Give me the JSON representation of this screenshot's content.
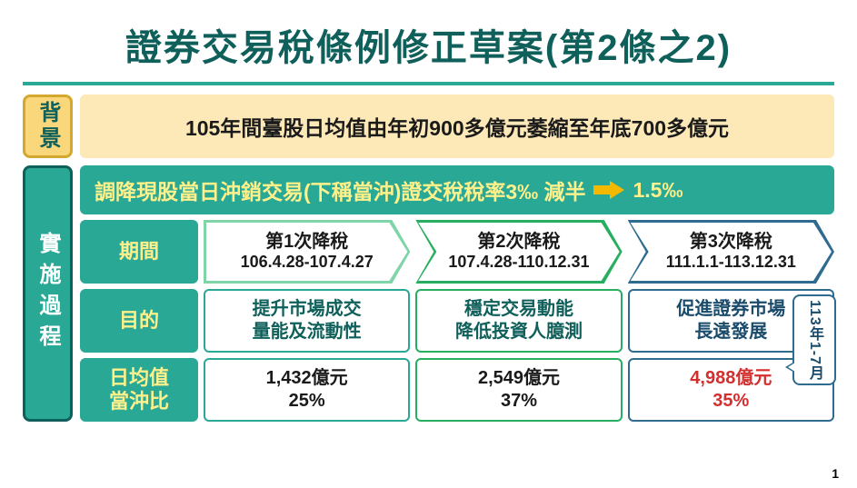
{
  "title": "證券交易稅條例修正草案(第2條之2)",
  "background": {
    "label": "背景",
    "content": "105年間臺股日均值由年初900多億元萎縮至年底700多億元"
  },
  "process": {
    "label": "實施過程",
    "rate_text": "調降現股當日沖銷交易(下稱當沖)證交稅稅率3‰ 減半",
    "rate_after": "1.5‰",
    "rows": {
      "period": "期間",
      "purpose": "目的",
      "avg": "日均值\n當沖比"
    },
    "phases": [
      {
        "title": "第1次降稅",
        "period": "106.4.28-107.4.27",
        "purpose_l1": "提升市場成交",
        "purpose_l2": "量能及流動性",
        "avg_l1": "1,432億元",
        "avg_l2": "25%",
        "border_color": "#7fd4a8"
      },
      {
        "title": "第2次降稅",
        "period": "107.4.28-110.12.31",
        "purpose_l1": "穩定交易動能",
        "purpose_l2": "降低投資人臆測",
        "avg_l1": "2,549億元",
        "avg_l2": "37%",
        "border_color": "#27ae60"
      },
      {
        "title": "第3次降稅",
        "period": "111.1.1-113.12.31",
        "purpose_l1": "促進證券市場",
        "purpose_l2": "長遠發展",
        "avg_l1": "4,988億元",
        "avg_l2": "35%",
        "border_color": "#2e6b8f"
      }
    ],
    "bubble": "113年1-7月"
  },
  "page_number": "1",
  "colors": {
    "teal": "#2aa896",
    "teal_dark": "#0f5f5a",
    "yellow_bg": "#fde9b8",
    "yellow_label": "#f9d77a",
    "yellow_text": "#fef08a",
    "phase1": "#7fd4a8",
    "phase2": "#27ae60",
    "phase3": "#2e6b8f",
    "red": "#d32f2f"
  }
}
